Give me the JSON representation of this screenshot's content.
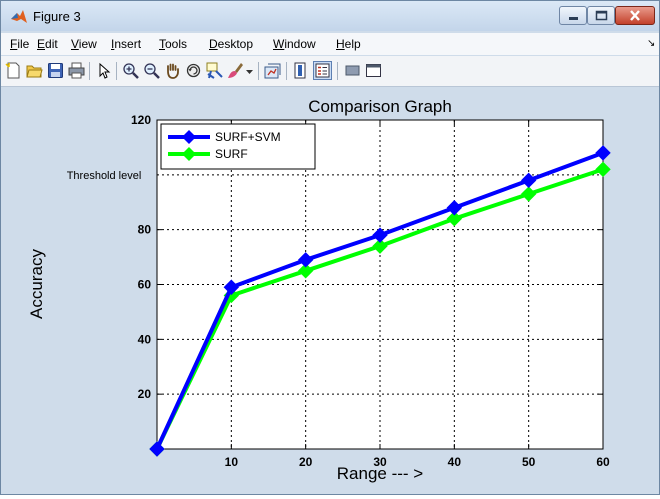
{
  "window": {
    "title": "Figure 3"
  },
  "menu": {
    "items": [
      {
        "label": "File",
        "underline": "F"
      },
      {
        "label": "Edit",
        "underline": "E"
      },
      {
        "label": "View",
        "underline": "V"
      },
      {
        "label": "Insert",
        "underline": "I"
      },
      {
        "label": "Tools",
        "underline": "T"
      },
      {
        "label": "Desktop",
        "underline": "D"
      },
      {
        "label": "Window",
        "underline": "W"
      },
      {
        "label": "Help",
        "underline": "H"
      }
    ]
  },
  "toolbar": {
    "icons": [
      "new-figure-icon",
      "open-file-icon",
      "save-icon",
      "print-icon",
      "select-arrow-icon",
      "zoom-in-icon",
      "zoom-out-icon",
      "pan-hand-icon",
      "rotate-3d-icon",
      "data-cursor-icon",
      "brush-icon",
      "brush-dropdown-icon",
      "link-plot-icon",
      "insert-colorbar-icon",
      "insert-legend-icon",
      "hide-plot-tools-icon",
      "show-plot-tools-icon"
    ]
  },
  "chart_data": {
    "type": "line",
    "title": "Comparison Graph",
    "xlabel": "Range --- >",
    "ylabel": "Accuracy",
    "xlim": [
      0,
      60
    ],
    "ylim": [
      0,
      120
    ],
    "xticks": [
      10,
      20,
      30,
      40,
      50,
      60
    ],
    "yticks": [
      20,
      40,
      60,
      80,
      120
    ],
    "ytick_labels": [
      "20",
      "40",
      "60",
      "80",
      "120"
    ],
    "annotation": {
      "text": "Threshold level",
      "y": 100
    },
    "grid": true,
    "legend_position": "top-left",
    "x": [
      0,
      10,
      20,
      30,
      40,
      50,
      60
    ],
    "series": [
      {
        "name": "SURF+SVM",
        "color": "#0000ff",
        "values": [
          0,
          59,
          69,
          78,
          88,
          98,
          108
        ]
      },
      {
        "name": "SURF",
        "color": "#00ff00",
        "values": [
          0,
          56,
          65,
          74,
          84,
          93,
          102
        ]
      }
    ]
  }
}
